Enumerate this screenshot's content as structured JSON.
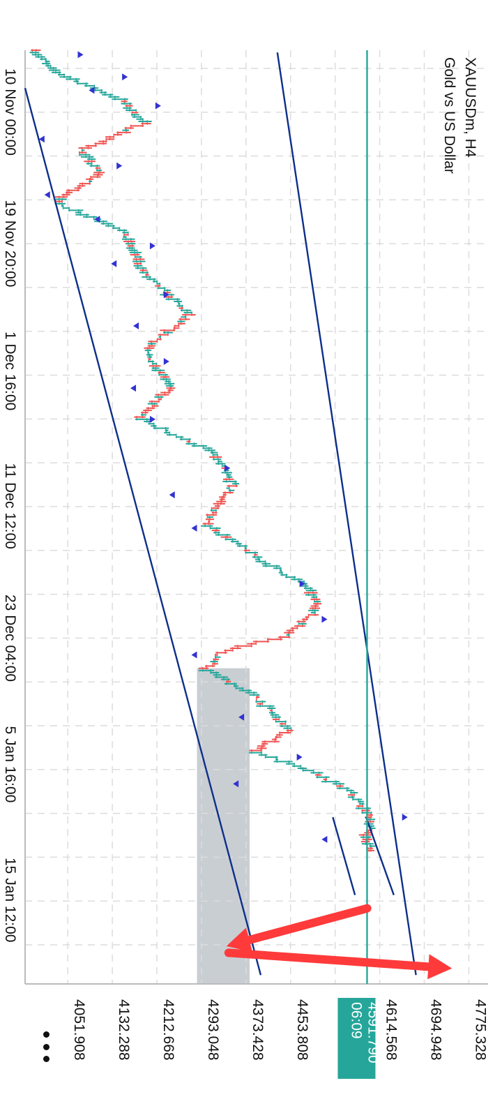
{
  "header": {
    "symbol_timeframe": "XAUUSDm, H4",
    "description": "Gold vs US Dollar"
  },
  "current_price": {
    "value": 4591.79,
    "label": "4591.790",
    "countdown": "06:09",
    "color": "#26a69a"
  },
  "colors": {
    "bull": "#26a69a",
    "bear": "#ef5350",
    "fractal": "#3232d2",
    "trendline": "#0d2f8a",
    "zone": "#c9ced3",
    "arrow": "#ff3a3a",
    "grid": "#dcdcdc"
  },
  "more_menu_icon": "vertical-ellipsis-icon",
  "chart_data": {
    "type": "candlestick",
    "orientation": "rotated-90-clockwise",
    "symbol": "XAUUSDm",
    "timeframe": "H4",
    "price_axis_ticks": [
      4051.908,
      4132.288,
      4212.668,
      4293.048,
      4373.428,
      4453.808,
      4534.188,
      4614.568,
      4694.948,
      4775.328
    ],
    "price_axis_labels": [
      "4051.908",
      "4132.288",
      "4212.668",
      "4293.048",
      "4373.428",
      "4453.808",
      "4534.188",
      "4614.568",
      "4694.948",
      "4775.328"
    ],
    "price_range": [
      3975,
      4810
    ],
    "time_axis_labels": [
      "10 Nov 00:00",
      "19 Nov 20:00",
      "1 Dec 16:00",
      "11 Dec 12:00",
      "23 Dec 04:00",
      "5 Jan 16:00",
      "15 Jan 12:00"
    ],
    "bar_range": [
      0,
      420
    ],
    "price_path": [
      {
        "bar": 0,
        "price": 3995
      },
      {
        "bar": 8,
        "price": 4020
      },
      {
        "bar": 22,
        "price": 4150
      },
      {
        "bar": 32,
        "price": 4190
      },
      {
        "bar": 45,
        "price": 4075
      },
      {
        "bar": 55,
        "price": 4110
      },
      {
        "bar": 68,
        "price": 4030
      },
      {
        "bar": 80,
        "price": 4150
      },
      {
        "bar": 100,
        "price": 4190
      },
      {
        "bar": 118,
        "price": 4270
      },
      {
        "bar": 135,
        "price": 4190
      },
      {
        "bar": 150,
        "price": 4240
      },
      {
        "bar": 165,
        "price": 4180
      },
      {
        "bar": 180,
        "price": 4310
      },
      {
        "bar": 195,
        "price": 4350
      },
      {
        "bar": 212,
        "price": 4300
      },
      {
        "bar": 228,
        "price": 4395
      },
      {
        "bar": 240,
        "price": 4480
      },
      {
        "bar": 250,
        "price": 4505
      },
      {
        "bar": 263,
        "price": 4450
      },
      {
        "bar": 270,
        "price": 4330
      },
      {
        "bar": 278,
        "price": 4300
      },
      {
        "bar": 290,
        "price": 4390
      },
      {
        "bar": 305,
        "price": 4450
      },
      {
        "bar": 315,
        "price": 4390
      },
      {
        "bar": 325,
        "price": 4500
      },
      {
        "bar": 333,
        "price": 4560
      },
      {
        "bar": 345,
        "price": 4600
      },
      {
        "bar": 355,
        "price": 4590
      },
      {
        "bar": 360,
        "price": 4600
      }
    ],
    "fractals": [
      {
        "bar": 2,
        "price": 4070,
        "side": "up"
      },
      {
        "bar": 12,
        "price": 4150,
        "side": "up"
      },
      {
        "bar": 18,
        "price": 4100,
        "side": "down"
      },
      {
        "bar": 25,
        "price": 4210,
        "side": "up"
      },
      {
        "bar": 40,
        "price": 4010,
        "side": "down"
      },
      {
        "bar": 52,
        "price": 4140,
        "side": "up"
      },
      {
        "bar": 65,
        "price": 4020,
        "side": "down"
      },
      {
        "bar": 76,
        "price": 4110,
        "side": "down"
      },
      {
        "bar": 88,
        "price": 4200,
        "side": "up"
      },
      {
        "bar": 96,
        "price": 4140,
        "side": "down"
      },
      {
        "bar": 110,
        "price": 4225,
        "side": "up"
      },
      {
        "bar": 124,
        "price": 4180,
        "side": "down"
      },
      {
        "bar": 140,
        "price": 4225,
        "side": "up"
      },
      {
        "bar": 152,
        "price": 4175,
        "side": "down"
      },
      {
        "bar": 166,
        "price": 4200,
        "side": "up"
      },
      {
        "bar": 188,
        "price": 4335,
        "side": "up"
      },
      {
        "bar": 200,
        "price": 4245,
        "side": "down"
      },
      {
        "bar": 215,
        "price": 4285,
        "side": "down"
      },
      {
        "bar": 240,
        "price": 4470,
        "side": "up"
      },
      {
        "bar": 256,
        "price": 4510,
        "side": "up"
      },
      {
        "bar": 272,
        "price": 4285,
        "side": "down"
      },
      {
        "bar": 300,
        "price": 4370,
        "side": "down"
      },
      {
        "bar": 318,
        "price": 4465,
        "side": "up"
      },
      {
        "bar": 330,
        "price": 4360,
        "side": "down"
      },
      {
        "bar": 345,
        "price": 4655,
        "side": "up"
      },
      {
        "bar": 355,
        "price": 4520,
        "side": "down"
      }
    ],
    "trendlines": [
      {
        "points": [
          {
            "bar": 17,
            "price": 3975
          },
          {
            "bar": 416,
            "price": 4400
          }
        ]
      },
      {
        "points": [
          {
            "bar": 1,
            "price": 4430
          },
          {
            "bar": 416,
            "price": 4680
          }
        ]
      },
      {
        "points": [
          {
            "bar": 345,
            "price": 4530
          },
          {
            "bar": 380,
            "price": 4570
          }
        ]
      },
      {
        "points": [
          {
            "bar": 345,
            "price": 4590
          },
          {
            "bar": 380,
            "price": 4640
          }
        ]
      }
    ],
    "horizontal_line": 4591.79,
    "zone": {
      "bar_from": 278,
      "bar_to": 420,
      "price_low": 4285,
      "price_high": 4380
    },
    "annotation_arrows": [
      {
        "from": {
          "bar": 386,
          "price": 4592
        },
        "to": {
          "bar": 403,
          "price": 4338
        }
      },
      {
        "from": {
          "bar": 406,
          "price": 4342
        },
        "to": {
          "bar": 413,
          "price": 4745
        }
      }
    ]
  }
}
